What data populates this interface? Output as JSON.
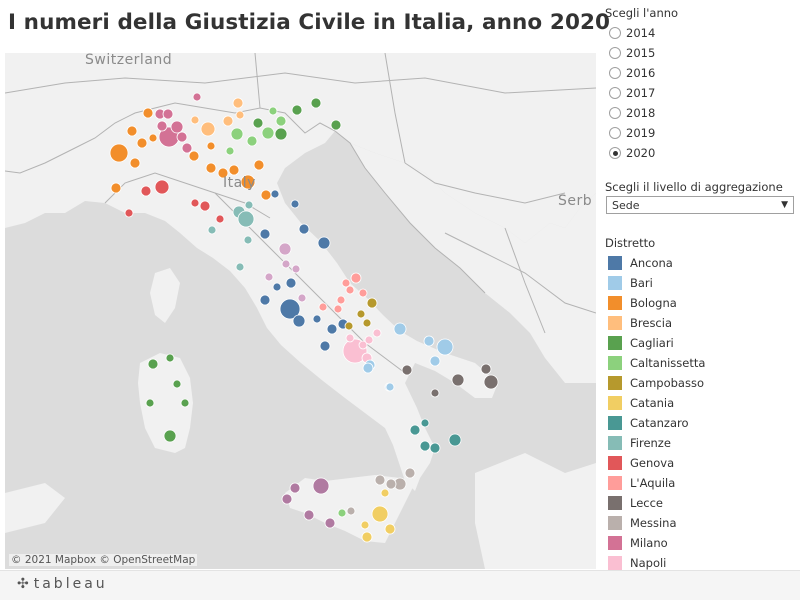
{
  "title": "I numeri della Giustizia Civile in Italia, anno 2020",
  "map": {
    "attribution": "© 2021 Mapbox  © OpenStreetMap",
    "country_labels": [
      "Switzerland",
      "Italy",
      "Serb"
    ],
    "colors": {
      "land": "#f1f1f1",
      "water": "#dcdcdc",
      "border": "#b3b3b3"
    }
  },
  "year_filter": {
    "title": "Scegli l'anno",
    "options": [
      "2014",
      "2015",
      "2016",
      "2017",
      "2018",
      "2019",
      "2020"
    ],
    "selected": "2020"
  },
  "level_filter": {
    "title": "Scegli il livello di aggregazione",
    "value": "Sede",
    "icon": "dropdown-arrow-icon"
  },
  "legend": {
    "title": "Distretto",
    "items": [
      {
        "label": "Ancona",
        "color": "#4e79a7"
      },
      {
        "label": "Bari",
        "color": "#a0cbe8"
      },
      {
        "label": "Bologna",
        "color": "#f28e2b"
      },
      {
        "label": "Brescia",
        "color": "#ffbe7d"
      },
      {
        "label": "Cagliari",
        "color": "#59a14f"
      },
      {
        "label": "Caltanissetta",
        "color": "#8cd17d"
      },
      {
        "label": "Campobasso",
        "color": "#b6992d"
      },
      {
        "label": "Catania",
        "color": "#f1ce63"
      },
      {
        "label": "Catanzaro",
        "color": "#499894"
      },
      {
        "label": "Firenze",
        "color": "#86bcb6"
      },
      {
        "label": "Genova",
        "color": "#e15759"
      },
      {
        "label": "L'Aquila",
        "color": "#ff9d9a"
      },
      {
        "label": "Lecce",
        "color": "#79706e"
      },
      {
        "label": "Messina",
        "color": "#bab0ac"
      },
      {
        "label": "Milano",
        "color": "#d37295"
      },
      {
        "label": "Napoli",
        "color": "#fabfd2"
      }
    ]
  },
  "footer": {
    "brand": "tableau",
    "icon": "tableau-logo-icon"
  }
}
